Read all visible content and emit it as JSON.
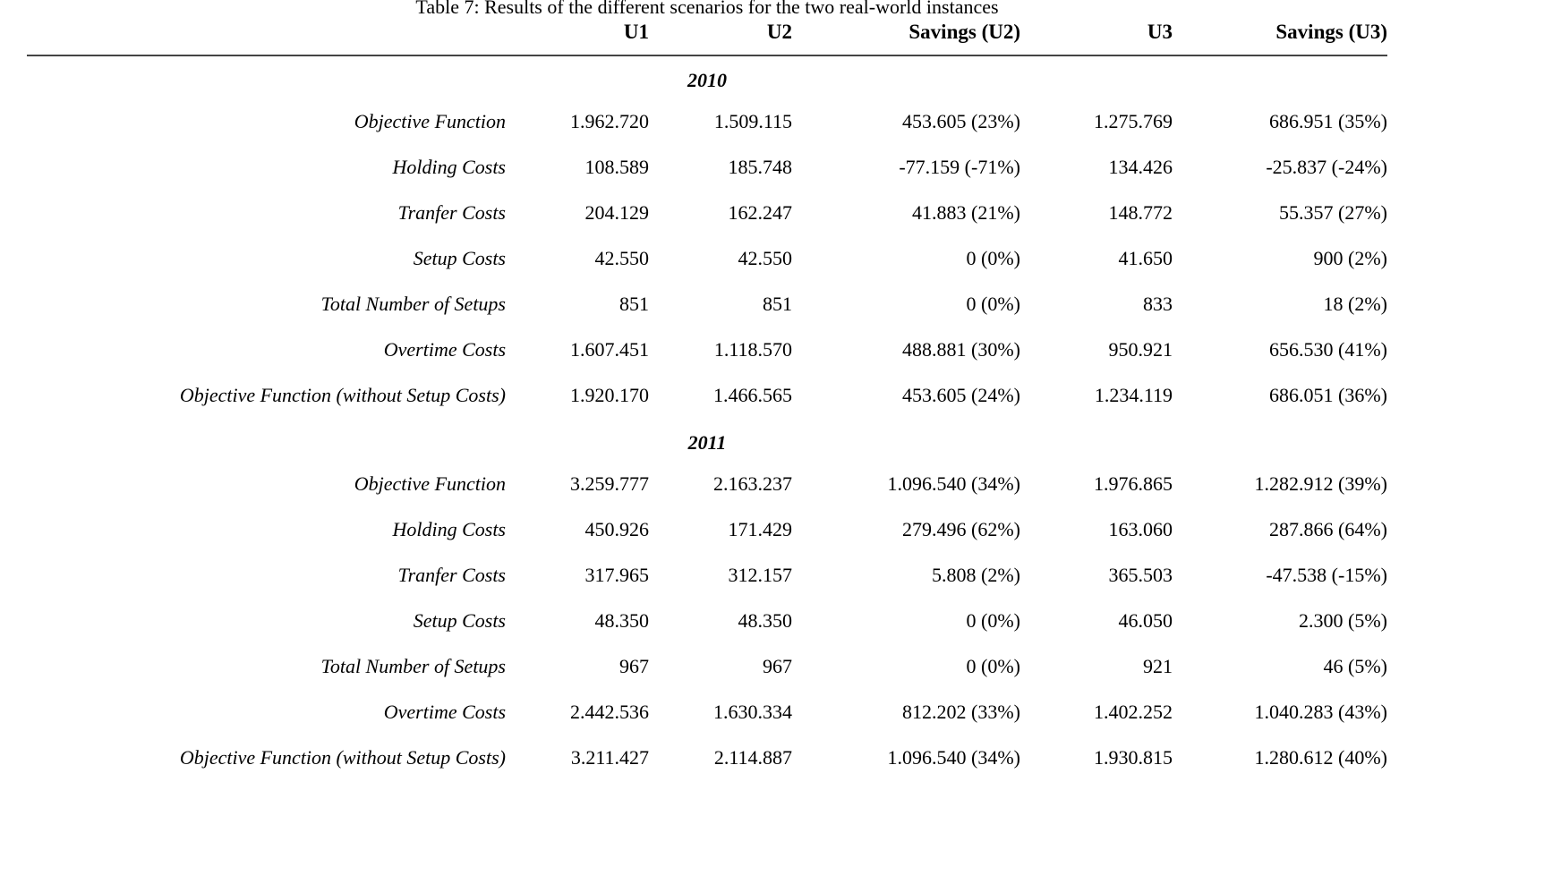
{
  "title": "Table 7: Results of the different scenarios for the two real-world instances",
  "columns": [
    "",
    "U1",
    "U2",
    "Savings (U2)",
    "U3",
    "Savings (U3)"
  ],
  "sections": [
    {
      "label": "2010",
      "rows": [
        {
          "label": "Objective Function",
          "values": [
            "1.962.720",
            "1.509.115",
            "453.605 (23%)",
            "1.275.769",
            "686.951 (35%)"
          ]
        },
        {
          "label": "Holding Costs",
          "values": [
            "108.589",
            "185.748",
            "-77.159 (-71%)",
            "134.426",
            "-25.837 (-24%)"
          ]
        },
        {
          "label": "Tranfer Costs",
          "values": [
            "204.129",
            "162.247",
            "41.883 (21%)",
            "148.772",
            "55.357 (27%)"
          ]
        },
        {
          "label": "Setup Costs",
          "values": [
            "42.550",
            "42.550",
            "0 (0%)",
            "41.650",
            "900 (2%)"
          ]
        },
        {
          "label": "Total Number of Setups",
          "values": [
            "851",
            "851",
            "0 (0%)",
            "833",
            "18 (2%)"
          ]
        },
        {
          "label": "Overtime Costs",
          "values": [
            "1.607.451",
            "1.118.570",
            "488.881 (30%)",
            "950.921",
            "656.530 (41%)"
          ]
        },
        {
          "label": "Objective Function (without Setup Costs)",
          "values": [
            "1.920.170",
            "1.466.565",
            "453.605 (24%)",
            "1.234.119",
            "686.051 (36%)"
          ]
        }
      ]
    },
    {
      "label": "2011",
      "rows": [
        {
          "label": "Objective Function",
          "values": [
            "3.259.777",
            "2.163.237",
            "1.096.540 (34%)",
            "1.976.865",
            "1.282.912 (39%)"
          ]
        },
        {
          "label": "Holding Costs",
          "values": [
            "450.926",
            "171.429",
            "279.496 (62%)",
            "163.060",
            "287.866 (64%)"
          ]
        },
        {
          "label": "Tranfer Costs",
          "values": [
            "317.965",
            "312.157",
            "5.808 (2%)",
            "365.503",
            "-47.538 (-15%)"
          ]
        },
        {
          "label": "Setup Costs",
          "values": [
            "48.350",
            "48.350",
            "0 (0%)",
            "46.050",
            "2.300 (5%)"
          ]
        },
        {
          "label": "Total Number of Setups",
          "values": [
            "967",
            "967",
            "0 (0%)",
            "921",
            "46 (5%)"
          ]
        },
        {
          "label": "Overtime Costs",
          "values": [
            "2.442.536",
            "1.630.334",
            "812.202 (33%)",
            "1.402.252",
            "1.040.283 (43%)"
          ]
        },
        {
          "label": "Objective Function (without Setup Costs)",
          "values": [
            "3.211.427",
            "2.114.887",
            "1.096.540 (34%)",
            "1.930.815",
            "1.280.612 (40%)"
          ]
        }
      ]
    }
  ]
}
